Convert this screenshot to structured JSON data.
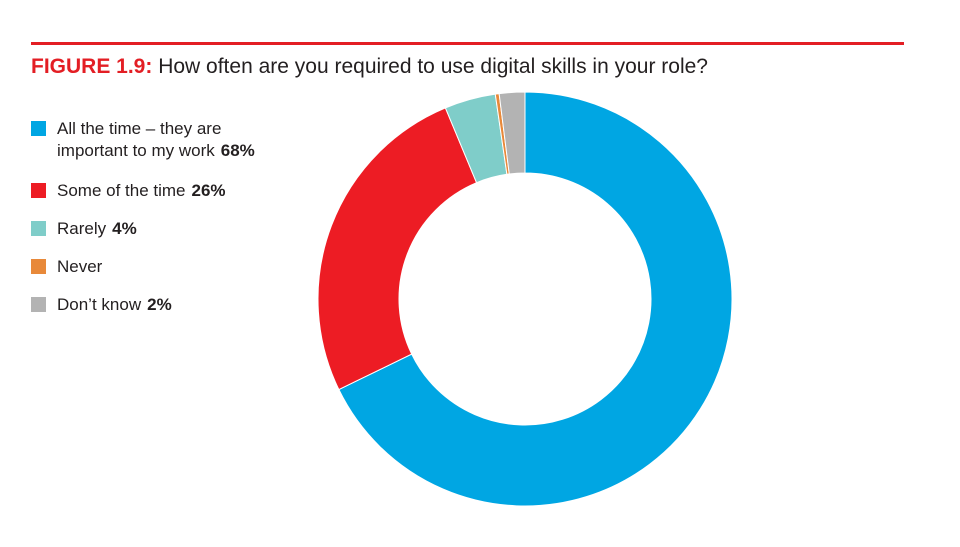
{
  "figure": {
    "label": "FIGURE 1.9:",
    "question": "How often are you required to use digital skills in your role?"
  },
  "legend": [
    {
      "line1": "All the time – they are",
      "line2": "important to my work",
      "pct": "68%",
      "color": "#00a6e3"
    },
    {
      "line1": "Some of the time",
      "pct": "26%",
      "color": "#ed1c24"
    },
    {
      "line1": "Rarely",
      "pct": "4%",
      "color": "#7fcdc9"
    },
    {
      "line1": "Never",
      "pct": "",
      "color": "#e8893a"
    },
    {
      "line1": "Don’t know",
      "pct": "2%",
      "color": "#b3b3b3"
    }
  ],
  "chart_data": {
    "type": "pie",
    "donut": true,
    "title": "How often are you required to use digital skills in your role?",
    "categories": [
      "All the time – they are important to my work",
      "Some of the time",
      "Rarely",
      "Never",
      "Don’t know"
    ],
    "values": [
      68,
      26,
      4,
      0.3,
      2
    ],
    "colors": [
      "#00a6e3",
      "#ed1c24",
      "#7fcdc9",
      "#e8893a",
      "#b3b3b3"
    ],
    "legend_position": "left"
  }
}
